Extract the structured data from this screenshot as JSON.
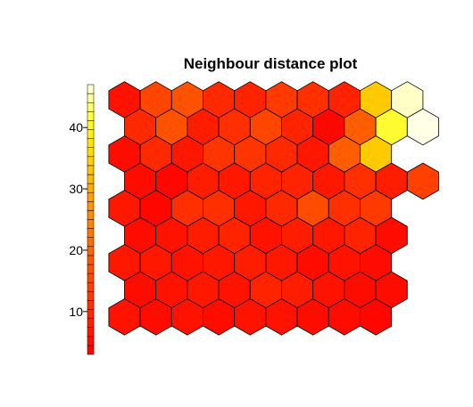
{
  "chart_data": {
    "type": "heatmap",
    "subtype": "hexagonal SOM neighbour distance map",
    "title": "Neighbour distance plot",
    "grid": {
      "rows": 9,
      "cols": 10,
      "layout": "hexagonal, odd rows offset right"
    },
    "color_scale": {
      "palette": "heat.colors (red to light yellow)",
      "ticks": [
        10,
        20,
        30,
        40
      ],
      "range": [
        3,
        47
      ],
      "bins": 30
    },
    "row_order": "top to bottom",
    "values": [
      [
        6,
        15,
        17,
        10,
        9,
        13,
        11,
        9,
        34,
        46
      ],
      [
        10,
        17,
        8,
        11,
        15,
        9,
        4,
        19,
        41,
        47
      ],
      [
        5,
        10,
        7,
        12,
        12,
        10,
        7,
        19,
        34,
        0
      ],
      [
        5,
        4,
        8,
        7,
        9,
        9,
        7,
        11,
        8,
        14
      ],
      [
        7,
        4,
        11,
        11,
        7,
        10,
        16,
        11,
        13,
        0
      ],
      [
        5,
        6,
        8,
        9,
        6,
        8,
        7,
        9,
        5,
        0
      ],
      [
        7,
        7,
        6,
        7,
        8,
        7,
        5,
        6,
        5,
        0
      ],
      [
        5,
        6,
        7,
        6,
        9,
        8,
        6,
        5,
        5,
        0
      ],
      [
        6,
        5,
        6,
        5,
        6,
        6,
        5,
        5,
        4,
        0
      ]
    ],
    "missing_cells_note": "cells with value 0 are not drawn"
  }
}
